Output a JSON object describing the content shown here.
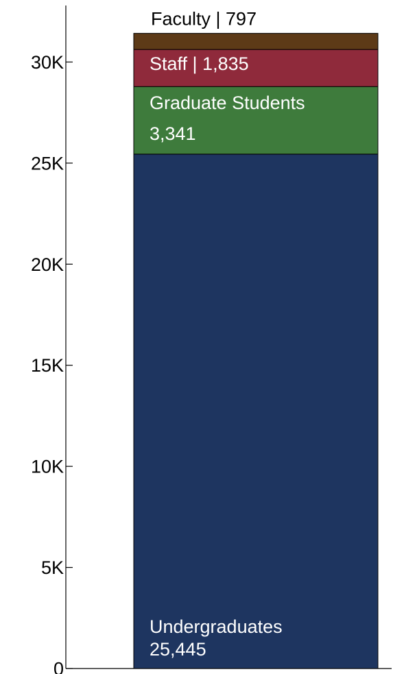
{
  "chart_data": {
    "type": "bar",
    "stacked": true,
    "categories": [
      ""
    ],
    "title": "",
    "xlabel": "",
    "ylabel": "",
    "ylim": [
      0,
      33000
    ],
    "grid": false,
    "legend": "none",
    "y_ticks": [
      {
        "value": 0,
        "label": "0"
      },
      {
        "value": 5000,
        "label": "5K"
      },
      {
        "value": 10000,
        "label": "10K"
      },
      {
        "value": 15000,
        "label": "15K"
      },
      {
        "value": 20000,
        "label": "20K"
      },
      {
        "value": 25000,
        "label": "25K"
      },
      {
        "value": 30000,
        "label": "30K"
      }
    ],
    "series": [
      {
        "name": "Undergraduates",
        "values": [
          25445
        ],
        "value_label": "25,445",
        "color": "#1e3560",
        "text_color": "#ffffff",
        "label_style": "two-line-bottom"
      },
      {
        "name": "Graduate Students",
        "values": [
          3341
        ],
        "value_label": "3,341",
        "color": "#3e7b3c",
        "text_color": "#ffffff",
        "label_style": "two-line-top"
      },
      {
        "name": "Staff",
        "values": [
          1835
        ],
        "value_label": "1,835",
        "color": "#8f2a3b",
        "text_color": "#ffffff",
        "label_style": "inline"
      },
      {
        "name": "Faculty",
        "values": [
          797
        ],
        "value_label": "797",
        "color": "#5d3a17",
        "text_color": "#000000",
        "label_style": "inline-above"
      }
    ]
  }
}
